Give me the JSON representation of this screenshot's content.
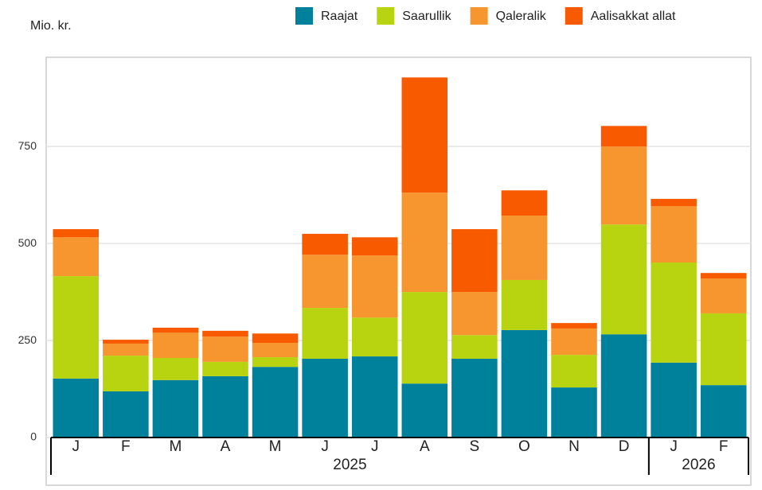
{
  "chart_data": {
    "type": "stacked_bar",
    "y_label": "Mio. kr.",
    "categories": [
      "J",
      "F",
      "M",
      "A",
      "M",
      "J",
      "J",
      "A",
      "S",
      "O",
      "N",
      "D",
      "J",
      "F"
    ],
    "groups": [
      {
        "label": "2025",
        "count": 12
      },
      {
        "label": "2026",
        "count": 2
      }
    ],
    "series": [
      {
        "name": "Raajat",
        "color": "#00819b",
        "values": [
          152,
          119,
          148,
          158,
          182,
          203,
          209,
          139,
          203,
          277,
          129,
          266,
          193,
          135
        ]
      },
      {
        "name": "Saarullik",
        "color": "#b8d411",
        "values": [
          264,
          92,
          57,
          37,
          25,
          131,
          100,
          236,
          61,
          129,
          84,
          283,
          258,
          185
        ]
      },
      {
        "name": "Qaleralik",
        "color": "#f7962e",
        "values": [
          100,
          31,
          65,
          65,
          37,
          137,
          160,
          256,
          111,
          166,
          68,
          201,
          145,
          90
        ]
      },
      {
        "name": "Aalisakkat allat",
        "color": "#f85a00",
        "values": [
          21,
          10,
          13,
          15,
          24,
          54,
          47,
          297,
          162,
          65,
          14,
          53,
          19,
          14
        ]
      }
    ],
    "ylim": [
      0,
      980
    ],
    "yticks": [
      0,
      250,
      500,
      750
    ],
    "grid": true,
    "legend": "top"
  }
}
